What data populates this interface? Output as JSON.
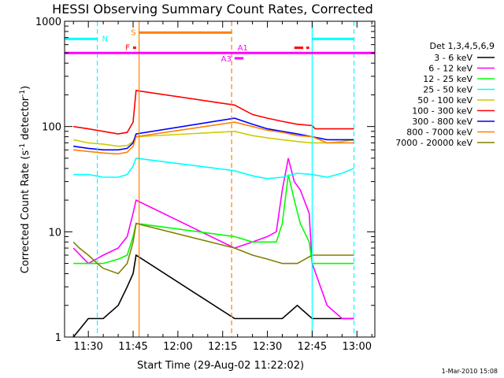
{
  "chart_data": {
    "type": "line",
    "title": "HESSI Observing Summary Count Rates, Corrected",
    "xlabel": "Start Time (29-Aug-02 11:22:02)",
    "ylabel": "Corrected Count Rate (s⁻¹ detector⁻¹)",
    "ylabel_parts": {
      "base": "Corrected Count Rate (s",
      "sup1": "-1",
      "mid": " detector",
      "sup2": "-1",
      "end": ")"
    },
    "yscale": "log",
    "ylim": [
      1,
      1000
    ],
    "xlim": [
      "11:22:02",
      "13:06:00"
    ],
    "x_ticks": [
      "11:30",
      "11:45",
      "12:00",
      "12:15",
      "12:30",
      "12:45",
      "13:00"
    ],
    "y_ticks": [
      "1",
      "10",
      "100",
      "1000"
    ],
    "grid": false,
    "footer": "1-Mar-2010 15:08",
    "legend": {
      "placement": "right",
      "title": "Det 1,3,4,5,6,9",
      "entries": [
        {
          "label": "3 - 6 keV",
          "color": "#000000"
        },
        {
          "label": "6 - 12 keV",
          "color": "#ff00ff"
        },
        {
          "label": "12 - 25 keV",
          "color": "#00ff00"
        },
        {
          "label": "25 - 50 keV",
          "color": "#00ffff"
        },
        {
          "label": "50 - 100 keV",
          "color": "#cccc00"
        },
        {
          "label": "100 - 300 keV",
          "color": "#ff0000"
        },
        {
          "label": "300 - 800 keV",
          "color": "#0000ff"
        },
        {
          "label": "800 - 7000 keV",
          "color": "#ff8000"
        },
        {
          "label": "7000 - 20000 keV",
          "color": "#808000"
        }
      ]
    },
    "series": [
      {
        "name": "3 - 6 keV",
        "color": "#000000",
        "x": [
          "11:25",
          "11:30",
          "11:35",
          "11:40",
          "11:43",
          "11:45",
          "11:46",
          "12:19",
          "12:25",
          "12:30",
          "12:35",
          "12:40",
          "12:45",
          "12:50",
          "12:55",
          "12:59"
        ],
        "y": [
          1,
          1.5,
          1.5,
          2,
          3,
          4,
          6,
          1.5,
          1.5,
          1.5,
          1.5,
          2,
          1.5,
          1.5,
          1.5,
          1.5
        ]
      },
      {
        "name": "6 - 12 keV",
        "color": "#ff00ff",
        "x": [
          "11:25",
          "11:30",
          "11:35",
          "11:40",
          "11:43",
          "11:45",
          "11:46",
          "12:19",
          "12:25",
          "12:30",
          "12:33",
          "12:35",
          "12:37",
          "12:39",
          "12:41",
          "12:44",
          "12:45",
          "12:50",
          "12:55",
          "12:59"
        ],
        "y": [
          7,
          5,
          6,
          7,
          9,
          15,
          20,
          7,
          8,
          9,
          10,
          25,
          50,
          30,
          25,
          15,
          5,
          2,
          1.5,
          1.5
        ]
      },
      {
        "name": "12 - 25 keV",
        "color": "#00ff00",
        "x": [
          "11:25",
          "11:30",
          "11:35",
          "11:40",
          "11:43",
          "11:45",
          "11:46",
          "12:19",
          "12:25",
          "12:30",
          "12:33",
          "12:35",
          "12:37",
          "12:39",
          "12:41",
          "12:44",
          "12:45",
          "12:50",
          "12:55",
          "12:59"
        ],
        "y": [
          5,
          5,
          5,
          5.5,
          6,
          9,
          12,
          9,
          8,
          8,
          8,
          12,
          35,
          20,
          12,
          8,
          5,
          5,
          5,
          5
        ]
      },
      {
        "name": "25 - 50 keV",
        "color": "#00ffff",
        "x": [
          "11:25",
          "11:30",
          "11:35",
          "11:40",
          "11:43",
          "11:45",
          "11:46",
          "12:19",
          "12:25",
          "12:30",
          "12:35",
          "12:40",
          "12:45",
          "12:50",
          "12:55",
          "12:59"
        ],
        "y": [
          35,
          35,
          33,
          33,
          35,
          42,
          50,
          38,
          34,
          32,
          33,
          36,
          35,
          33,
          36,
          40
        ]
      },
      {
        "name": "50 - 100 keV",
        "color": "#cccc00",
        "x": [
          "11:25",
          "11:30",
          "11:35",
          "11:40",
          "11:43",
          "11:45",
          "11:46",
          "12:19",
          "12:25",
          "12:30",
          "12:35",
          "12:40",
          "12:45",
          "12:50",
          "12:55",
          "12:59"
        ],
        "y": [
          75,
          70,
          68,
          65,
          66,
          72,
          80,
          90,
          82,
          78,
          75,
          72,
          70,
          70,
          72,
          75
        ]
      },
      {
        "name": "100 - 300 keV",
        "color": "#ff0000",
        "x": [
          "11:25",
          "11:30",
          "11:35",
          "11:40",
          "11:43",
          "11:45",
          "11:46",
          "12:19",
          "12:25",
          "12:30",
          "12:35",
          "12:40",
          "12:45",
          "12:46",
          "12:50",
          "12:55",
          "12:59"
        ],
        "y": [
          100,
          95,
          90,
          85,
          88,
          110,
          220,
          160,
          130,
          120,
          112,
          105,
          102,
          95,
          95,
          95,
          95
        ]
      },
      {
        "name": "300 - 800 keV",
        "color": "#0000ff",
        "x": [
          "11:25",
          "11:30",
          "11:35",
          "11:40",
          "11:43",
          "11:45",
          "11:46",
          "12:19",
          "12:25",
          "12:30",
          "12:35",
          "12:40",
          "12:45",
          "12:50",
          "12:55",
          "12:59"
        ],
        "y": [
          65,
          62,
          60,
          60,
          62,
          70,
          85,
          120,
          105,
          95,
          90,
          85,
          80,
          75,
          75,
          75
        ]
      },
      {
        "name": "800 - 7000 keV",
        "color": "#ff8000",
        "x": [
          "11:25",
          "11:30",
          "11:35",
          "11:40",
          "11:43",
          "11:45",
          "11:46",
          "12:19",
          "12:25",
          "12:30",
          "12:35",
          "12:40",
          "12:45",
          "12:50",
          "12:55",
          "12:59"
        ],
        "y": [
          60,
          58,
          56,
          55,
          57,
          65,
          80,
          110,
          100,
          92,
          88,
          82,
          80,
          70,
          70,
          70
        ]
      },
      {
        "name": "7000 - 20000 keV",
        "color": "#808000",
        "x": [
          "11:25",
          "11:27",
          "11:30",
          "11:33",
          "11:35",
          "11:40",
          "11:43",
          "11:45",
          "11:46",
          "12:19",
          "12:25",
          "12:30",
          "12:35",
          "12:40",
          "12:45",
          "12:50",
          "12:55",
          "12:59"
        ],
        "y": [
          8,
          7,
          6,
          5,
          4.5,
          4,
          5,
          8,
          12,
          7,
          6,
          5.5,
          5,
          5,
          6,
          6,
          6,
          6
        ]
      }
    ],
    "annotations": {
      "vertical_lines": [
        {
          "time": "11:33",
          "color": "#00ffff",
          "style": "dashed"
        },
        {
          "time": "11:47",
          "color": "#ff8000",
          "style": "solid"
        },
        {
          "time": "12:18",
          "color": "#ff8000",
          "style": "dashed"
        },
        {
          "time": "12:45",
          "color": "#00ffff",
          "style": "solid"
        },
        {
          "time": "12:59",
          "color": "#00ffff",
          "style": "dashed"
        }
      ],
      "flag_bars": [
        {
          "label": "N",
          "color": "#00ffff",
          "y": 680,
          "segments": [
            [
              "11:22:02",
              "11:33"
            ],
            [
              "12:45",
              "12:59"
            ]
          ]
        },
        {
          "label": "S",
          "color": "#ff8000",
          "y": 780,
          "segments": [
            [
              "11:47",
              "12:18"
            ]
          ]
        },
        {
          "label": "F",
          "color": "#ff0000",
          "y": 560,
          "segments": [
            [
              "11:45",
              "11:46"
            ],
            [
              "12:39",
              "12:42"
            ],
            [
              "12:43",
              "12:44"
            ]
          ]
        },
        {
          "label": "A1",
          "color": "#ff00ff",
          "y": 500,
          "segments": [
            [
              "11:22:02",
              "13:06:00"
            ]
          ]
        },
        {
          "label": "A3",
          "color": "#ff00ff",
          "y": 445,
          "segments": [
            [
              "12:19",
              "12:22"
            ]
          ]
        }
      ]
    }
  }
}
